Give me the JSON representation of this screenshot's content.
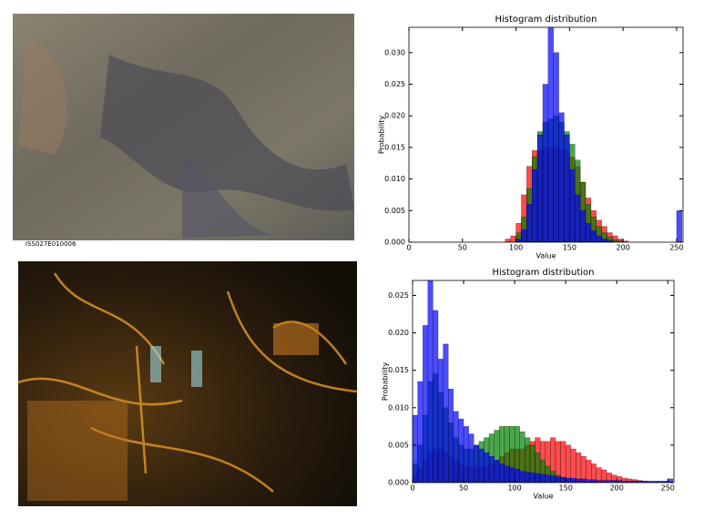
{
  "photo_caption": "ISS027E010006",
  "chart_data": [
    {
      "type": "histogram",
      "title": "Histogram distribution",
      "x_label": "Value",
      "y_label": "Probability",
      "bins": [
        0,
        5,
        10,
        15,
        20,
        25,
        30,
        35,
        40,
        45,
        50,
        55,
        60,
        65,
        70,
        75,
        80,
        85,
        90,
        95,
        100,
        105,
        110,
        115,
        120,
        125,
        130,
        135,
        140,
        145,
        150,
        155,
        160,
        165,
        170,
        175,
        180,
        185,
        190,
        195,
        200,
        205,
        210,
        215,
        220,
        225,
        230,
        235,
        240,
        245,
        250,
        255
      ],
      "series": [
        {
          "color": "#ff0000",
          "values": [
            0,
            0,
            0,
            0,
            0,
            0,
            0,
            0,
            0,
            0,
            0,
            0,
            0,
            0,
            0,
            0,
            0,
            0,
            0.0005,
            0.001,
            0.003,
            0.0075,
            0.012,
            0.0145,
            0.0145,
            0.015,
            0.015,
            0.015,
            0.0148,
            0.0145,
            0.0135,
            0.012,
            0.0095,
            0.007,
            0.005,
            0.0035,
            0.0025,
            0.0015,
            0.001,
            0.0005,
            0.0002,
            0,
            0,
            0,
            0,
            0,
            0,
            0,
            0,
            0,
            0
          ]
        },
        {
          "color": "#008000",
          "values": [
            0,
            0,
            0,
            0,
            0,
            0,
            0,
            0,
            0,
            0,
            0,
            0,
            0,
            0,
            0,
            0,
            0,
            0,
            0,
            0,
            0.0015,
            0.004,
            0.0085,
            0.0135,
            0.0175,
            0.019,
            0.0195,
            0.02,
            0.019,
            0.0175,
            0.0155,
            0.013,
            0.0095,
            0.006,
            0.004,
            0.0025,
            0.0015,
            0.0008,
            0.0004,
            0.0002,
            0,
            0,
            0,
            0,
            0,
            0,
            0,
            0,
            0,
            0,
            0
          ]
        },
        {
          "color": "#0000ff",
          "values": [
            0,
            0,
            0,
            0,
            0,
            0,
            0,
            0,
            0,
            0,
            0,
            0,
            0,
            0,
            0,
            0,
            0,
            0,
            0,
            0,
            0.0005,
            0.002,
            0.006,
            0.0115,
            0.017,
            0.025,
            0.036,
            0.03,
            0.0205,
            0.017,
            0.0115,
            0.0075,
            0.005,
            0.003,
            0.0018,
            0.001,
            0.0005,
            0.0003,
            0,
            0,
            0,
            0,
            0,
            0,
            0,
            0,
            0,
            0,
            0,
            0,
            0.005
          ]
        }
      ],
      "alpha": 0.7,
      "xlim": [
        0,
        256
      ],
      "xticks": [
        0,
        50,
        100,
        150,
        200,
        250
      ],
      "ylim": [
        0,
        0.034
      ],
      "yticks": [
        {
          "value": 0,
          "label": "0.000"
        },
        {
          "value": 0.005,
          "label": "0.005"
        },
        {
          "value": 0.01,
          "label": "0.010"
        },
        {
          "value": 0.015,
          "label": "0.015"
        },
        {
          "value": 0.02,
          "label": "0.020"
        },
        {
          "value": 0.025,
          "label": "0.025"
        },
        {
          "value": 0.03,
          "label": "0.030"
        }
      ]
    },
    {
      "type": "histogram",
      "title": "Histogram distribution",
      "x_label": "Value",
      "y_label": "Probability",
      "bins": [
        0,
        5,
        10,
        15,
        20,
        25,
        30,
        35,
        40,
        45,
        50,
        55,
        60,
        65,
        70,
        75,
        80,
        85,
        90,
        95,
        100,
        105,
        110,
        115,
        120,
        125,
        130,
        135,
        140,
        145,
        150,
        155,
        160,
        165,
        170,
        175,
        180,
        185,
        190,
        195,
        200,
        205,
        210,
        215,
        220,
        225,
        230,
        235,
        240,
        245,
        250,
        255
      ],
      "series": [
        {
          "color": "#ff0000",
          "values": [
            0.001,
            0.002,
            0.003,
            0.004,
            0.0045,
            0.0045,
            0.004,
            0.0035,
            0.003,
            0.0025,
            0.0022,
            0.002,
            0.002,
            0.002,
            0.0022,
            0.0025,
            0.003,
            0.0035,
            0.004,
            0.0045,
            0.0045,
            0.0045,
            0.005,
            0.0055,
            0.006,
            0.0055,
            0.0055,
            0.006,
            0.0055,
            0.0055,
            0.005,
            0.0045,
            0.004,
            0.0035,
            0.003,
            0.0025,
            0.002,
            0.0017,
            0.0013,
            0.001,
            0.0008,
            0.0006,
            0.0005,
            0.0004,
            0.0003,
            0.0002,
            0.0001,
            0.0001,
            0.0001,
            0.0001,
            0.0001
          ]
        },
        {
          "color": "#008000",
          "values": [
            0.0025,
            0.005,
            0.009,
            0.0135,
            0.0145,
            0.012,
            0.01,
            0.008,
            0.006,
            0.005,
            0.0045,
            0.0045,
            0.005,
            0.0055,
            0.006,
            0.0065,
            0.007,
            0.0075,
            0.0075,
            0.0075,
            0.0075,
            0.0068,
            0.006,
            0.005,
            0.004,
            0.003,
            0.0022,
            0.0015,
            0.001,
            0.0007,
            0.0005,
            0.0003,
            0.0002,
            0.0002,
            0.0001,
            0.0001,
            0,
            0,
            0,
            0,
            0,
            0,
            0,
            0,
            0,
            0,
            0,
            0,
            0,
            0,
            0
          ]
        },
        {
          "color": "#0000ff",
          "values": [
            0.009,
            0.0135,
            0.021,
            0.0275,
            0.023,
            0.0165,
            0.0185,
            0.0125,
            0.0095,
            0.0085,
            0.0075,
            0.0065,
            0.005,
            0.0045,
            0.004,
            0.0035,
            0.003,
            0.0025,
            0.0022,
            0.002,
            0.0018,
            0.0015,
            0.0014,
            0.0013,
            0.0012,
            0.0011,
            0.001,
            0.0009,
            0.0008,
            0.0007,
            0.0006,
            0.0006,
            0.0005,
            0.0005,
            0.0004,
            0.0004,
            0.0003,
            0.0003,
            0.0003,
            0.0003,
            0.0003,
            0.0002,
            0.0002,
            0.0002,
            0.0002,
            0.0002,
            0.0002,
            0.0002,
            0.0002,
            0.0002,
            0.0005
          ]
        }
      ],
      "alpha": 0.7,
      "xlim": [
        0,
        256
      ],
      "xticks": [
        0,
        50,
        100,
        150,
        200,
        250
      ],
      "ylim": [
        0,
        0.027
      ],
      "yticks": [
        {
          "value": 0,
          "label": "0.000"
        },
        {
          "value": 0.005,
          "label": "0.005"
        },
        {
          "value": 0.01,
          "label": "0.010"
        },
        {
          "value": 0.015,
          "label": "0.015"
        },
        {
          "value": 0.02,
          "label": "0.020"
        },
        {
          "value": 0.025,
          "label": "0.025"
        }
      ]
    }
  ]
}
